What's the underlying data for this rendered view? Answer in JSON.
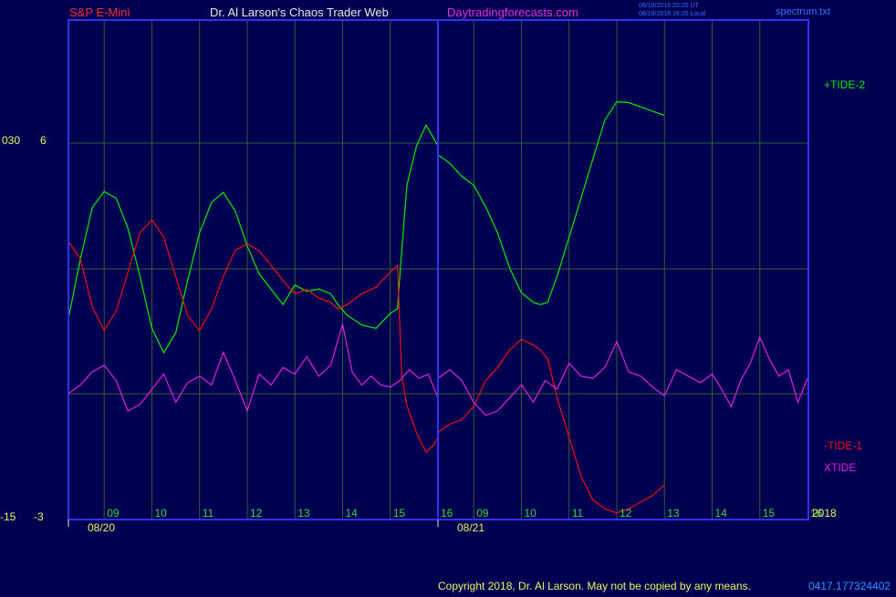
{
  "header": {
    "symbol": "S&P E-Mini",
    "author": "Dr. Al Larson's Chaos Trader Web",
    "site": "Daytradingforecasts.com",
    "timestamp_line1": "08/19/2018 20:20 UT",
    "timestamp_line2": "08/19/2018 16:20 Local",
    "file_name": "spectrum.txt"
  },
  "footer": {
    "copyright": "Copyright 2018, Dr. Al Larson. May not be copied by any means.",
    "run_id": "0417.177324402"
  },
  "colors": {
    "background": "#000050",
    "frame": "#3030ff",
    "grid": "#2f6030",
    "tide2": "#00ee00",
    "tide1": "#ee1010",
    "xtide": "#e020e0",
    "hour_label": "#40d040",
    "date_label": "#f0f060",
    "header_red": "#ee3030",
    "header_white": "#e8e8e8",
    "header_magenta": "#e030e0",
    "header_blue": "#3070ff",
    "copyright": "#f0f060"
  },
  "chart_data": {
    "type": "line",
    "title": "",
    "xlabel": "",
    "ylabel": "",
    "grid": true,
    "year_label": "2018",
    "y_axis_labels": {
      "upper_left": "030",
      "upper_right": "6",
      "lower_left": "-15",
      "lower_right": "-3"
    },
    "day_labels": [
      "08/20",
      "08/21"
    ],
    "hour_ticks": [
      {
        "hour": 9.0,
        "label": "09",
        "day": 0
      },
      {
        "hour": 10.0,
        "label": "10",
        "day": 0
      },
      {
        "hour": 11.0,
        "label": "11",
        "day": 0
      },
      {
        "hour": 12.0,
        "label": "12",
        "day": 0
      },
      {
        "hour": 13.0,
        "label": "13",
        "day": 0
      },
      {
        "hour": 14.0,
        "label": "14",
        "day": 0
      },
      {
        "hour": 15.0,
        "label": "15",
        "day": 0
      },
      {
        "hour": 16.0,
        "label": "16",
        "day": 0
      },
      {
        "hour": 9.0,
        "label": "09",
        "day": 1
      },
      {
        "hour": 10.0,
        "label": "10",
        "day": 1
      },
      {
        "hour": 11.0,
        "label": "11",
        "day": 1
      },
      {
        "hour": 12.0,
        "label": "12",
        "day": 1
      },
      {
        "hour": 13.0,
        "label": "13",
        "day": 1
      },
      {
        "hour": 14.0,
        "label": "14",
        "day": 1
      },
      {
        "hour": 15.0,
        "label": "15",
        "day": 1
      },
      {
        "hour": 16.0,
        "label": "16",
        "day": 1
      }
    ],
    "session": {
      "start_hour": 8.25,
      "end_hour": 16.0
    },
    "y_range": [
      -3,
      8.5
    ],
    "series": [
      {
        "name": "+TIDE-2",
        "color": "#00ee00",
        "points": [
          [
            0,
            8.25,
            1.63
          ],
          [
            0,
            8.5,
            3.0
          ],
          [
            0,
            8.75,
            4.18
          ],
          [
            0,
            9.0,
            4.55
          ],
          [
            0,
            9.25,
            4.4
          ],
          [
            0,
            9.5,
            3.7
          ],
          [
            0,
            9.75,
            2.6
          ],
          [
            0,
            10.0,
            1.4
          ],
          [
            0,
            10.25,
            0.84
          ],
          [
            0,
            10.5,
            1.3
          ],
          [
            0,
            10.75,
            2.5
          ],
          [
            0,
            11.0,
            3.6
          ],
          [
            0,
            11.25,
            4.3
          ],
          [
            0,
            11.5,
            4.53
          ],
          [
            0,
            11.75,
            4.1
          ],
          [
            0,
            12.0,
            3.3
          ],
          [
            0,
            12.25,
            2.66
          ],
          [
            0,
            12.5,
            2.3
          ],
          [
            0,
            12.75,
            1.95
          ],
          [
            0,
            13.0,
            2.4
          ],
          [
            0,
            13.25,
            2.25
          ],
          [
            0,
            13.5,
            2.31
          ],
          [
            0,
            13.75,
            2.2
          ],
          [
            0,
            13.9,
            1.95
          ],
          [
            0,
            14.1,
            1.7
          ],
          [
            0,
            14.4,
            1.48
          ],
          [
            0,
            14.7,
            1.4
          ],
          [
            0,
            15.0,
            1.75
          ],
          [
            0,
            15.15,
            1.85
          ],
          [
            0,
            15.24,
            3.2
          ],
          [
            0,
            15.35,
            4.7
          ],
          [
            0,
            15.55,
            5.6
          ],
          [
            0,
            15.75,
            6.08
          ],
          [
            0,
            15.9,
            5.8
          ],
          [
            0,
            16.0,
            5.6
          ],
          [
            1,
            8.25,
            5.4
          ],
          [
            1,
            8.5,
            5.2
          ],
          [
            1,
            8.75,
            4.9
          ],
          [
            1,
            9.0,
            4.7
          ],
          [
            1,
            9.25,
            4.2
          ],
          [
            1,
            9.5,
            3.6
          ],
          [
            1,
            9.75,
            2.8
          ],
          [
            1,
            10.0,
            2.22
          ],
          [
            1,
            10.25,
            2.0
          ],
          [
            1,
            10.4,
            1.95
          ],
          [
            1,
            10.55,
            2.0
          ],
          [
            1,
            10.75,
            2.6
          ],
          [
            1,
            11.0,
            3.5
          ],
          [
            1,
            11.25,
            4.4
          ],
          [
            1,
            11.5,
            5.3
          ],
          [
            1,
            11.75,
            6.2
          ],
          [
            1,
            12.0,
            6.62
          ],
          [
            1,
            12.25,
            6.6
          ],
          [
            1,
            12.5,
            6.5
          ],
          [
            1,
            12.75,
            6.4
          ],
          [
            1,
            13.0,
            6.31
          ]
        ]
      },
      {
        "name": "-TIDE-1",
        "color": "#ee1010",
        "points": [
          [
            0,
            8.25,
            3.4
          ],
          [
            0,
            8.5,
            3.0
          ],
          [
            0,
            8.75,
            1.9
          ],
          [
            0,
            9.0,
            1.35
          ],
          [
            0,
            9.25,
            1.8
          ],
          [
            0,
            9.5,
            2.7
          ],
          [
            0,
            9.75,
            3.6
          ],
          [
            0,
            10.0,
            3.9
          ],
          [
            0,
            10.25,
            3.5
          ],
          [
            0,
            10.5,
            2.6
          ],
          [
            0,
            10.75,
            1.7
          ],
          [
            0,
            11.0,
            1.35
          ],
          [
            0,
            11.25,
            1.85
          ],
          [
            0,
            11.5,
            2.6
          ],
          [
            0,
            11.75,
            3.2
          ],
          [
            0,
            12.0,
            3.35
          ],
          [
            0,
            12.25,
            3.18
          ],
          [
            0,
            12.5,
            2.85
          ],
          [
            0,
            12.75,
            2.5
          ],
          [
            0,
            13.0,
            2.2
          ],
          [
            0,
            13.25,
            2.3
          ],
          [
            0,
            13.5,
            2.1
          ],
          [
            0,
            13.75,
            2.0
          ],
          [
            0,
            13.9,
            1.85
          ],
          [
            0,
            14.1,
            1.95
          ],
          [
            0,
            14.4,
            2.2
          ],
          [
            0,
            14.7,
            2.35
          ],
          [
            0,
            15.0,
            2.7
          ],
          [
            0,
            15.15,
            2.85
          ],
          [
            0,
            15.24,
            0.32
          ],
          [
            0,
            15.35,
            -0.38
          ],
          [
            0,
            15.55,
            -1.0
          ],
          [
            0,
            15.75,
            -1.45
          ],
          [
            0,
            15.9,
            -1.3
          ],
          [
            0,
            16.0,
            -1.1
          ],
          [
            1,
            8.25,
            -1.0
          ],
          [
            1,
            8.5,
            -0.8
          ],
          [
            1,
            8.75,
            -0.7
          ],
          [
            1,
            9.0,
            -0.4
          ],
          [
            1,
            9.25,
            0.2
          ],
          [
            1,
            9.5,
            0.5
          ],
          [
            1,
            9.75,
            0.9
          ],
          [
            1,
            10.0,
            1.15
          ],
          [
            1,
            10.25,
            1.02
          ],
          [
            1,
            10.4,
            0.9
          ],
          [
            1,
            10.55,
            0.7
          ],
          [
            1,
            10.75,
            -0.2
          ],
          [
            1,
            11.0,
            -1.1
          ],
          [
            1,
            11.25,
            -2.0
          ],
          [
            1,
            11.5,
            -2.55
          ],
          [
            1,
            11.75,
            -2.75
          ],
          [
            1,
            12.0,
            -2.85
          ],
          [
            1,
            12.25,
            -2.75
          ],
          [
            1,
            12.5,
            -2.6
          ],
          [
            1,
            12.75,
            -2.45
          ],
          [
            1,
            13.0,
            -2.2
          ]
        ]
      },
      {
        "name": "XTIDE",
        "color": "#e020e0",
        "points": [
          [
            0,
            8.25,
            -0.1
          ],
          [
            0,
            8.5,
            0.1
          ],
          [
            0,
            8.75,
            0.4
          ],
          [
            0,
            9.0,
            0.55
          ],
          [
            0,
            9.25,
            0.2
          ],
          [
            0,
            9.5,
            -0.5
          ],
          [
            0,
            9.75,
            -0.35
          ],
          [
            0,
            10.0,
            0.0
          ],
          [
            0,
            10.25,
            0.35
          ],
          [
            0,
            10.5,
            -0.3
          ],
          [
            0,
            10.75,
            0.15
          ],
          [
            0,
            11.0,
            0.3
          ],
          [
            0,
            11.25,
            0.1
          ],
          [
            0,
            11.5,
            0.85
          ],
          [
            0,
            11.75,
            0.2
          ],
          [
            0,
            12.0,
            -0.5
          ],
          [
            0,
            12.25,
            0.35
          ],
          [
            0,
            12.5,
            0.1
          ],
          [
            0,
            12.75,
            0.5
          ],
          [
            0,
            13.0,
            0.35
          ],
          [
            0,
            13.25,
            0.75
          ],
          [
            0,
            13.5,
            0.3
          ],
          [
            0,
            13.75,
            0.55
          ],
          [
            0,
            14.0,
            1.5
          ],
          [
            0,
            14.2,
            0.4
          ],
          [
            0,
            14.4,
            0.1
          ],
          [
            0,
            14.6,
            0.3
          ],
          [
            0,
            14.8,
            0.1
          ],
          [
            0,
            15.0,
            0.05
          ],
          [
            0,
            15.2,
            0.2
          ],
          [
            0,
            15.4,
            0.45
          ],
          [
            0,
            15.6,
            0.25
          ],
          [
            0,
            15.8,
            0.35
          ],
          [
            0,
            16.0,
            -0.2
          ],
          [
            1,
            8.25,
            0.25
          ],
          [
            1,
            8.5,
            0.45
          ],
          [
            1,
            8.75,
            0.2
          ],
          [
            1,
            9.0,
            -0.3
          ],
          [
            1,
            9.25,
            -0.6
          ],
          [
            1,
            9.5,
            -0.5
          ],
          [
            1,
            9.75,
            -0.2
          ],
          [
            1,
            10.0,
            0.1
          ],
          [
            1,
            10.25,
            -0.3
          ],
          [
            1,
            10.5,
            0.2
          ],
          [
            1,
            10.75,
            0.0
          ],
          [
            1,
            11.0,
            0.6
          ],
          [
            1,
            11.25,
            0.3
          ],
          [
            1,
            11.5,
            0.25
          ],
          [
            1,
            11.75,
            0.5
          ],
          [
            1,
            12.0,
            1.1
          ],
          [
            1,
            12.25,
            0.4
          ],
          [
            1,
            12.5,
            0.3
          ],
          [
            1,
            12.75,
            0.05
          ],
          [
            1,
            13.0,
            -0.15
          ],
          [
            1,
            13.25,
            0.45
          ],
          [
            1,
            13.5,
            0.3
          ],
          [
            1,
            13.75,
            0.15
          ],
          [
            1,
            14.0,
            0.35
          ],
          [
            1,
            14.2,
            0.0
          ],
          [
            1,
            14.4,
            -0.4
          ],
          [
            1,
            14.6,
            0.2
          ],
          [
            1,
            14.8,
            0.6
          ],
          [
            1,
            15.0,
            1.2
          ],
          [
            1,
            15.2,
            0.7
          ],
          [
            1,
            15.4,
            0.3
          ],
          [
            1,
            15.6,
            0.45
          ],
          [
            1,
            15.8,
            -0.3
          ],
          [
            1,
            16.0,
            0.25
          ]
        ]
      }
    ]
  }
}
